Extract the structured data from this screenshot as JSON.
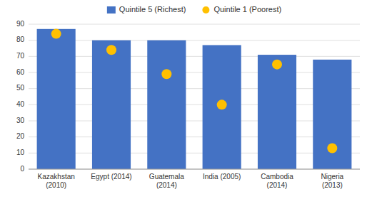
{
  "chart_data": {
    "type": "bar",
    "categories": [
      "Kazakhstan\n(2010)",
      "Egypt (2014)",
      "Guatemala\n(2014)",
      "India (2005)",
      "Cambodia\n(2014)",
      "Nigeria\n(2013)"
    ],
    "series": [
      {
        "name": "Quintile 5 (Richest)",
        "type": "bar",
        "color": "#4472C4",
        "values": [
          87,
          80,
          80,
          77,
          71,
          68
        ]
      },
      {
        "name": "Quintile 1 (Poorest)",
        "type": "scatter",
        "marker": "circle",
        "color": "#FFC000",
        "values": [
          84,
          74,
          59,
          40,
          65,
          13
        ]
      }
    ],
    "ylim": [
      0,
      90
    ],
    "yticks": [
      0,
      10,
      20,
      30,
      40,
      50,
      60,
      70,
      80,
      90
    ],
    "grid": true,
    "legend": "top"
  }
}
